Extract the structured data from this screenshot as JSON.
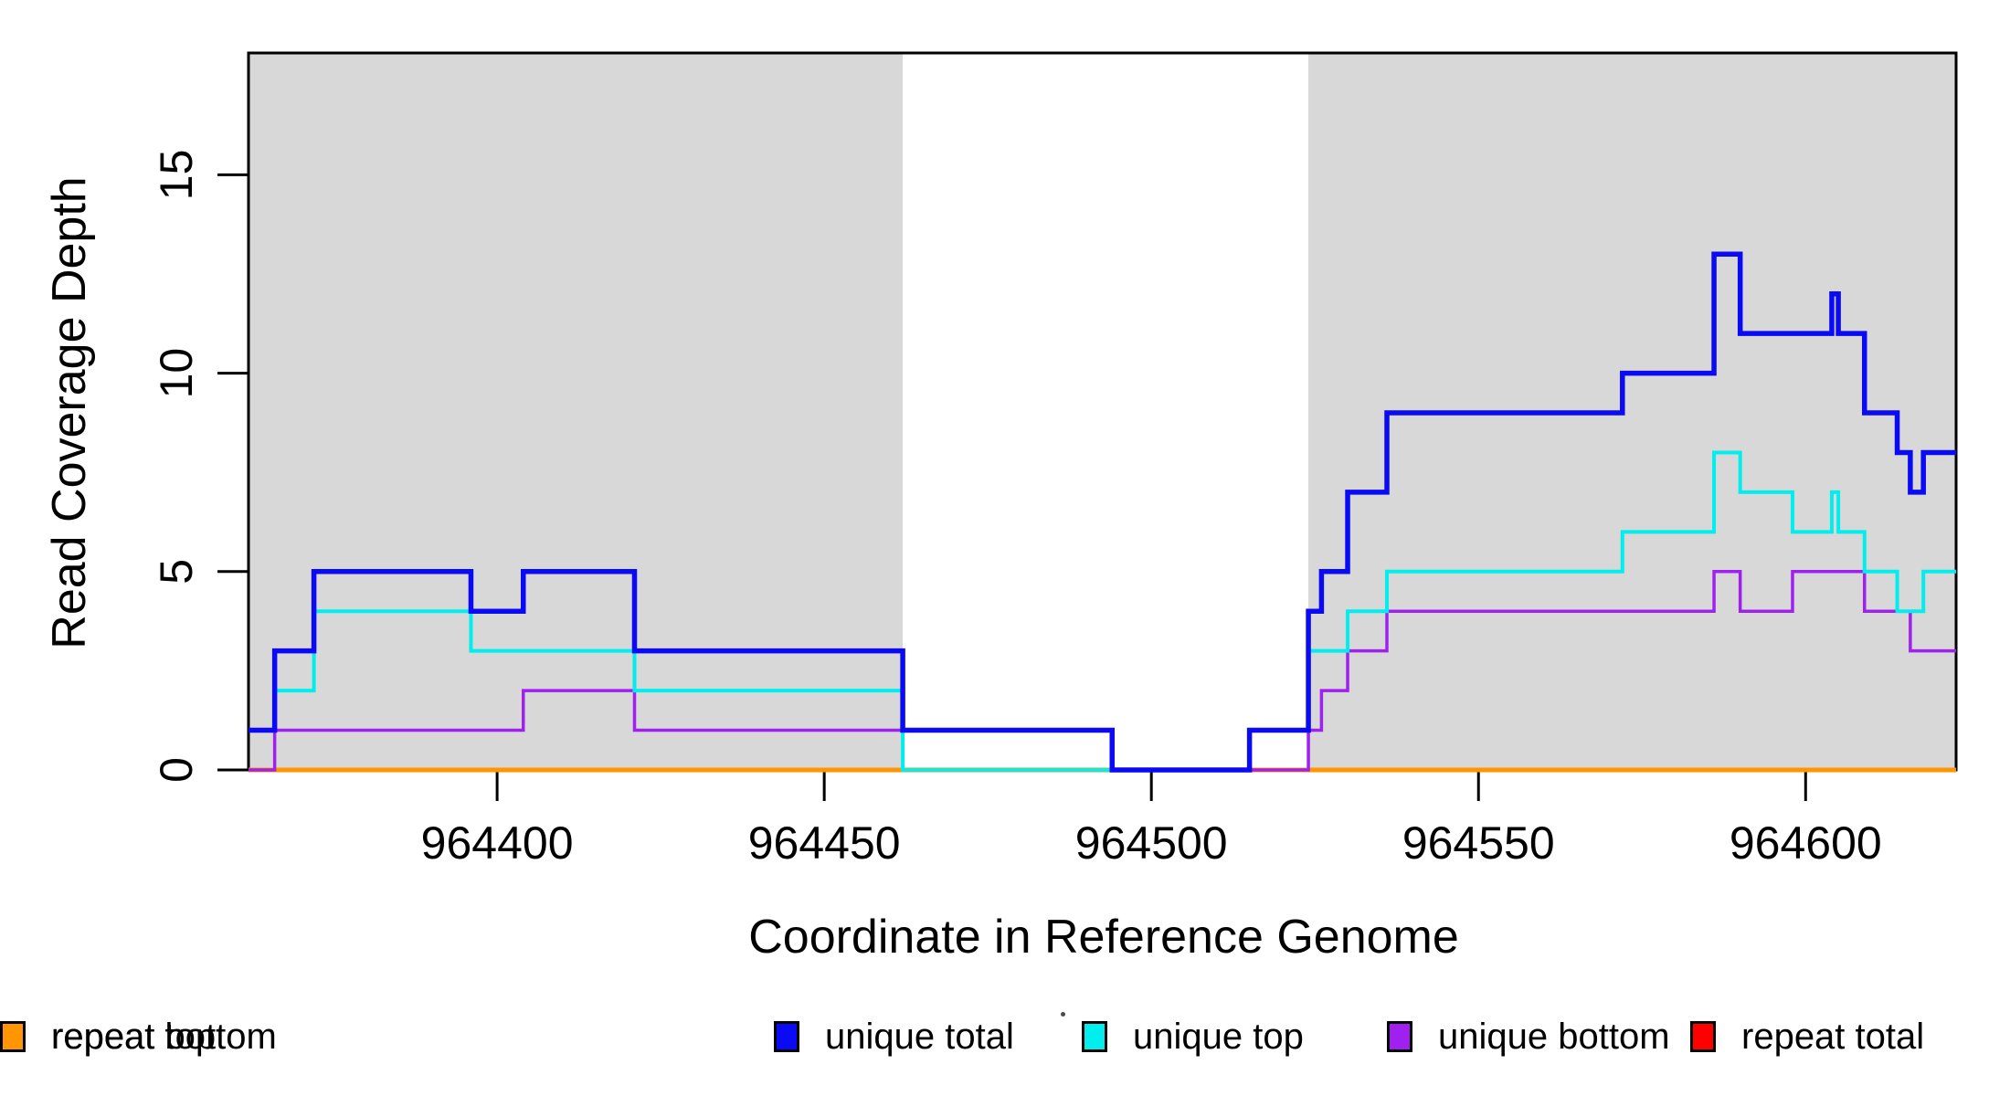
{
  "figure": {
    "background": "#FFFFFF",
    "shade_color": "#D8D8D8",
    "axis_color": "#000000"
  },
  "chart_data": {
    "type": "line",
    "step": true,
    "title": "",
    "xlabel": "Coordinate in Reference Genome",
    "ylabel": "Read Coverage Depth",
    "xlim": [
      964362,
      964623
    ],
    "ylim": [
      0,
      18
    ],
    "x_ticks": [
      964400,
      964450,
      964500,
      964550,
      964600
    ],
    "y_ticks": [
      0,
      5,
      10,
      15
    ],
    "grid": false,
    "legend_position": "bottom",
    "shaded_regions": [
      [
        964362,
        964462
      ],
      [
        964524,
        964623
      ]
    ],
    "series": [
      {
        "name": "unique total",
        "color": "#0A0AF5",
        "width": 5.5,
        "points": [
          [
            964362,
            1
          ],
          [
            964366,
            3
          ],
          [
            964372,
            5
          ],
          [
            964396,
            4
          ],
          [
            964404,
            5
          ],
          [
            964421,
            3
          ],
          [
            964462,
            1
          ],
          [
            964494,
            0
          ],
          [
            964515,
            1
          ],
          [
            964524,
            4
          ],
          [
            964526,
            5
          ],
          [
            964530,
            7
          ],
          [
            964536,
            9
          ],
          [
            964572,
            10
          ],
          [
            964586,
            13
          ],
          [
            964590,
            11
          ],
          [
            964604,
            12
          ],
          [
            964605,
            11
          ],
          [
            964609,
            9
          ],
          [
            964614,
            8
          ],
          [
            964616,
            7
          ],
          [
            964618,
            8
          ],
          [
            964623,
            8
          ]
        ]
      },
      {
        "name": "unique top",
        "color": "#00EEEE",
        "width": 4,
        "points": [
          [
            964362,
            1
          ],
          [
            964366,
            2
          ],
          [
            964372,
            4
          ],
          [
            964396,
            3
          ],
          [
            964421,
            2
          ],
          [
            964462,
            0
          ],
          [
            964515,
            1
          ],
          [
            964524,
            3
          ],
          [
            964530,
            4
          ],
          [
            964536,
            5
          ],
          [
            964572,
            6
          ],
          [
            964586,
            8
          ],
          [
            964590,
            7
          ],
          [
            964598,
            6
          ],
          [
            964604,
            7
          ],
          [
            964605,
            6
          ],
          [
            964609,
            5
          ],
          [
            964614,
            4
          ],
          [
            964618,
            5
          ],
          [
            964623,
            5
          ]
        ]
      },
      {
        "name": "unique bottom",
        "color": "#A020F0",
        "width": 3.5,
        "points": [
          [
            964362,
            0
          ],
          [
            964366,
            1
          ],
          [
            964404,
            2
          ],
          [
            964421,
            1
          ],
          [
            964494,
            0
          ],
          [
            964524,
            1
          ],
          [
            964526,
            2
          ],
          [
            964530,
            3
          ],
          [
            964536,
            4
          ],
          [
            964586,
            5
          ],
          [
            964590,
            4
          ],
          [
            964598,
            5
          ],
          [
            964609,
            4
          ],
          [
            964616,
            3
          ],
          [
            964623,
            3
          ]
        ]
      },
      {
        "name": "repeat total",
        "color": "#FF0000",
        "width": 4.5,
        "points": [
          [
            964362,
            0
          ],
          [
            964623,
            0
          ]
        ]
      },
      {
        "name": "repeat top",
        "color": "#FFFF00",
        "width": 4.5,
        "points": [
          [
            964362,
            0
          ],
          [
            964623,
            0
          ]
        ]
      },
      {
        "name": "repeat bottom",
        "color": "#FF9500",
        "width": 5,
        "points": [
          [
            964362,
            0
          ],
          [
            964623,
            0
          ]
        ]
      }
    ]
  }
}
